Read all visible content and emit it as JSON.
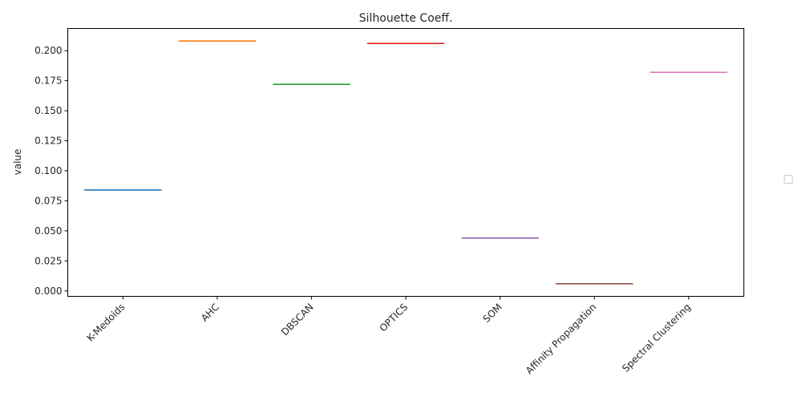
{
  "chart_data": {
    "type": "line",
    "title": "Silhouette Coeff.",
    "xlabel": "",
    "ylabel": "value",
    "categories": [
      "K-Medoids",
      "AHC",
      "DBSCAN",
      "OPTICS",
      "SOM",
      "Affinity Propagation",
      "Spectral Clustering"
    ],
    "values": [
      0.084,
      0.208,
      0.172,
      0.206,
      0.044,
      0.006,
      0.182
    ],
    "colors": [
      "#1f77b4",
      "#ff7f0e",
      "#2ca02c",
      "#d62728",
      "#9467bd",
      "#8c564b",
      "#e377c2"
    ],
    "yticks": [
      "0.000",
      "0.025",
      "0.050",
      "0.075",
      "0.100",
      "0.125",
      "0.150",
      "0.175",
      "0.200"
    ],
    "ylim": [
      -0.0045,
      0.2185
    ],
    "grid": false,
    "legend": "empty box, right"
  }
}
